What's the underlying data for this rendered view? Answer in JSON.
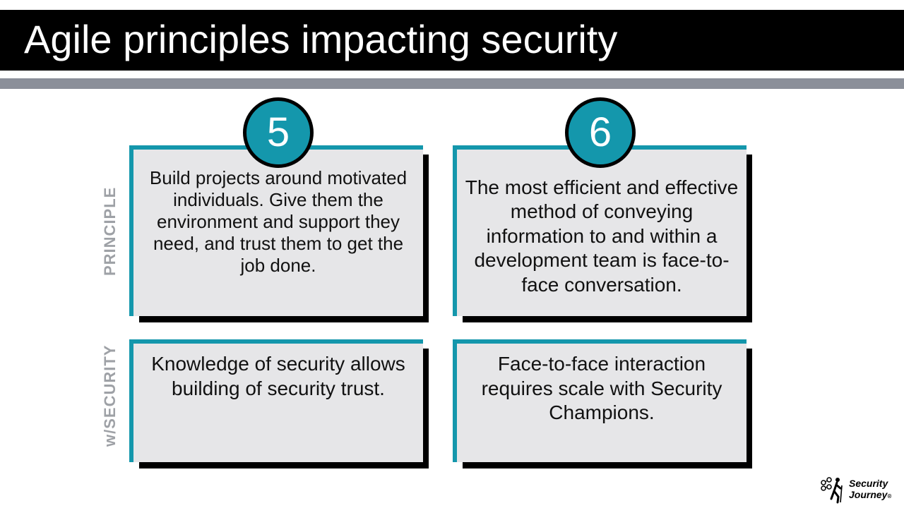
{
  "slide": {
    "title": "Agile principles impacting security",
    "row_labels": {
      "principle": "PRINCIPLE",
      "security": "w/SECURITY"
    },
    "cards": [
      {
        "number": "5",
        "principle": "Build projects around motivated individuals. Give them the environment and support they need, and trust them to get the job done.",
        "security": "Knowledge of security allows building of security trust."
      },
      {
        "number": "6",
        "principle": "The most efficient and effective method of conveying information to and within a development team is face-to-face conversation.",
        "security": "Face-to-face interaction requires scale with Security Champions."
      }
    ],
    "logo": {
      "line1": "Security",
      "line2": "Journey",
      "mark": "®"
    },
    "colors": {
      "accent": "#1497ac",
      "title_bg": "#000000",
      "divider": "#8b8f99",
      "card_bg": "#e6e6e8",
      "label": "#9ea1a6"
    }
  }
}
